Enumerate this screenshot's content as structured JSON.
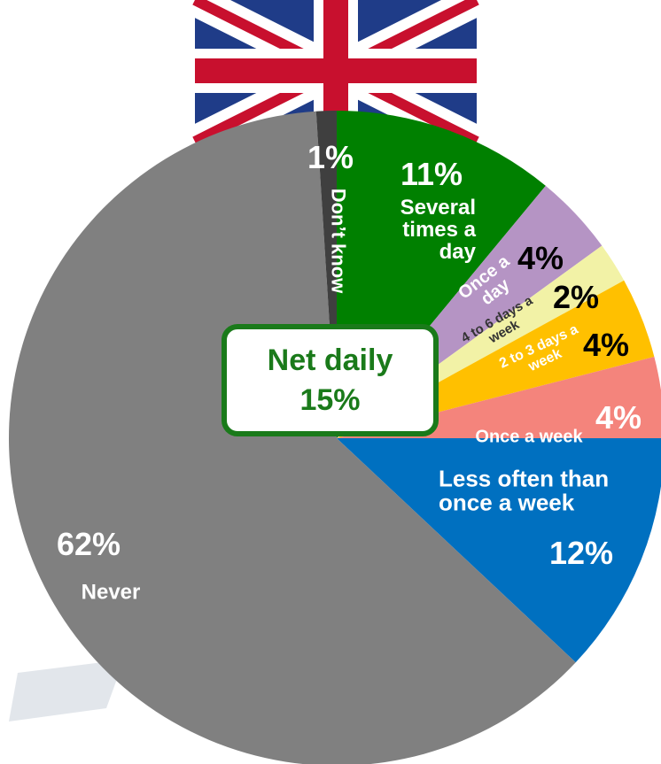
{
  "chart_data": {
    "type": "pie",
    "categories": [
      "Several times a day",
      "Once a day",
      "4 to 6 days a week",
      "2 to 3 days a week",
      "Once a week",
      "Less often than once a week",
      "Never",
      "Don’t know"
    ],
    "values": [
      11,
      4,
      2,
      4,
      4,
      12,
      62,
      1
    ],
    "value_labels": [
      "11%",
      "4%",
      "2%",
      "4%",
      "4%",
      "12%",
      "62%",
      "1%"
    ],
    "colors": [
      "#008000",
      "#b594c4",
      "#f2f2a6",
      "#ffc000",
      "#f4847c",
      "#0070c0",
      "#808080",
      "#3f3f3f"
    ],
    "annotation_title": "Net daily",
    "annotation_value": "15%"
  }
}
